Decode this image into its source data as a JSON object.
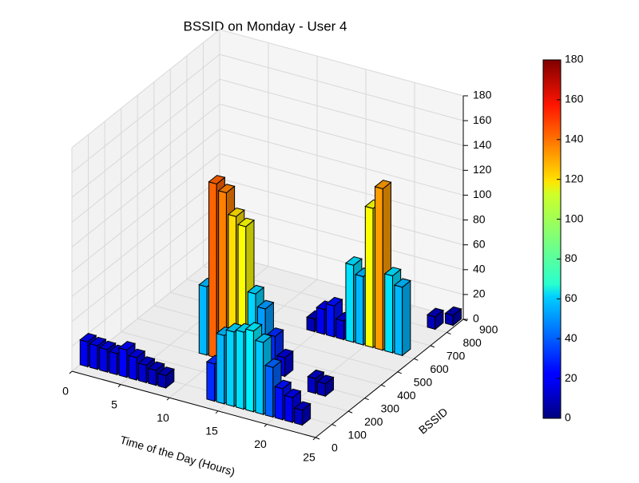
{
  "chart_data": {
    "type": "bar3d",
    "title": "BSSID on Monday - User 4",
    "xlabel": "Time of the Day (Hours)",
    "ylabel": "BSSID",
    "xlim": [
      0,
      25
    ],
    "ylim": [
      0,
      900
    ],
    "zlim": [
      0,
      180
    ],
    "xticks": [
      0,
      5,
      10,
      15,
      20,
      25
    ],
    "yticks": [
      0,
      100,
      200,
      300,
      400,
      500,
      600,
      700,
      800,
      900
    ],
    "zticks": [
      0,
      20,
      40,
      60,
      80,
      100,
      120,
      140,
      160,
      180
    ],
    "colormap": "jet",
    "clim": [
      0,
      180
    ],
    "cticks": [
      0,
      20,
      40,
      60,
      80,
      100,
      120,
      140,
      160,
      180
    ],
    "grid": true,
    "x": [
      0,
      1,
      2,
      3,
      4,
      5,
      6,
      7,
      8,
      13,
      14,
      15,
      16,
      17,
      18,
      19,
      20,
      21,
      22,
      8,
      9,
      10,
      11,
      12,
      13,
      14,
      15,
      16,
      14,
      15,
      16,
      17,
      18,
      19,
      20,
      21,
      22,
      23,
      20,
      21,
      23,
      24
    ],
    "y": [
      50,
      50,
      50,
      50,
      50,
      50,
      50,
      50,
      50,
      50,
      50,
      50,
      50,
      50,
      50,
      50,
      50,
      50,
      50,
      300,
      300,
      300,
      300,
      300,
      300,
      300,
      300,
      300,
      600,
      600,
      600,
      600,
      600,
      600,
      600,
      600,
      600,
      600,
      250,
      250,
      800,
      850
    ],
    "values": [
      20,
      19,
      18,
      17,
      22,
      18,
      14,
      12,
      10,
      30,
      55,
      60,
      62,
      65,
      58,
      40,
      25,
      20,
      12,
      55,
      140,
      135,
      118,
      112,
      60,
      50,
      30,
      15,
      10,
      20,
      25,
      15,
      62,
      55,
      112,
      130,
      62,
      55,
      12,
      10,
      10,
      8
    ]
  }
}
